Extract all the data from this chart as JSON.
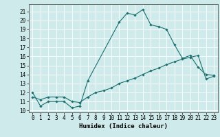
{
  "xlabel": "Humidex (Indice chaleur)",
  "background_color": "#ceeaea",
  "line_color": "#1a6e6e",
  "xlim": [
    -0.5,
    23.5
  ],
  "ylim": [
    9.8,
    21.8
  ],
  "yticks": [
    10,
    11,
    12,
    13,
    14,
    15,
    16,
    17,
    18,
    19,
    20,
    21
  ],
  "xticks": [
    0,
    1,
    2,
    3,
    4,
    5,
    6,
    7,
    8,
    9,
    10,
    11,
    12,
    13,
    14,
    15,
    16,
    17,
    18,
    19,
    20,
    21,
    22,
    23
  ],
  "curve1_x": [
    0,
    1,
    2,
    3,
    4,
    5,
    6,
    7,
    11,
    12,
    13,
    14,
    15,
    16,
    17,
    18,
    19,
    20,
    21,
    22,
    23
  ],
  "curve1_y": [
    12.0,
    10.5,
    11.0,
    11.0,
    11.0,
    10.3,
    10.5,
    13.3,
    19.8,
    20.8,
    20.6,
    21.2,
    19.5,
    19.3,
    19.0,
    17.3,
    15.8,
    16.1,
    14.8,
    14.0,
    13.9
  ],
  "curve2_x": [
    0,
    1,
    2,
    3,
    4,
    5,
    6,
    7,
    8,
    9,
    10,
    11,
    12,
    13,
    14,
    15,
    16,
    17,
    18,
    19,
    20,
    21,
    22,
    23
  ],
  "curve2_y": [
    11.5,
    11.2,
    11.5,
    11.5,
    11.5,
    11.0,
    10.9,
    11.5,
    12.0,
    12.2,
    12.5,
    13.0,
    13.3,
    13.6,
    14.0,
    14.4,
    14.7,
    15.1,
    15.4,
    15.7,
    15.9,
    16.1,
    13.5,
    13.8
  ],
  "grid_color": "#ffffff",
  "tick_fontsize": 5.5,
  "label_fontsize": 6.5,
  "marker_size": 1.8,
  "line_width": 0.8
}
